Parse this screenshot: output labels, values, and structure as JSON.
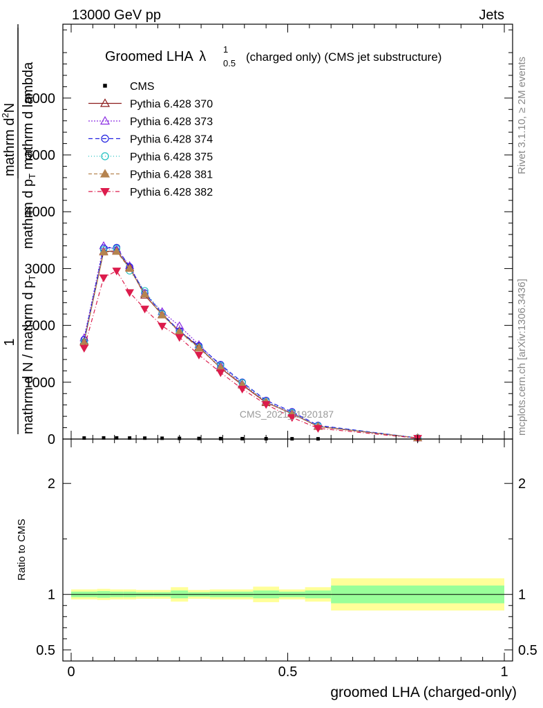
{
  "header": {
    "left": "13000 GeV pp",
    "right": "Jets"
  },
  "side_labels": {
    "rivet": "Rivet 3.1.10, ≥ 2M events",
    "mcplots": "mcplots.cern.ch [arXiv:1306.3436]"
  },
  "watermark": "CMS_2021_I1920187",
  "colors": {
    "band_outer": "#ffff99",
    "band_inner": "#99ff99",
    "cms": "#000000",
    "py370": "#8b1a1a",
    "py373": "#8a2be2",
    "py374": "#2020e0",
    "py375": "#20c0c0",
    "py381": "#b5834f",
    "py382": "#dc1c4c"
  },
  "chart_data": [
    {
      "type": "line",
      "title": "Groomed LHA λ¹₀.₅ (charged only) (CMS jet substructure)",
      "title_main": "Groomed LHA",
      "title_lambda": "λ",
      "title_sup": "1",
      "title_sub": "0.5",
      "title_rest": "(charged only) (CMS jet substructure)",
      "ylabel_numerator": "1",
      "ylabel_denominator": "mathrm d N / mathrm d p_T",
      "ylabel_overlay_1": "mathrm d^2 N",
      "ylabel_overlay_2": "mathrm d p_T mathrm d lambda",
      "ylabel_overlay_text1": "mathrm d",
      "ylabel_overlay_text1_sup": "2",
      "ylabel_overlay_text1_tail": "N",
      "ylabel_overlay_text2": "mathrm d p",
      "ylabel_overlay_text2_sub": "T",
      "ylabel_overlay_text2_tail": " mathrm d lambda",
      "ylabel_den_text": "mathrm d N / mathrm d p",
      "ylabel_den_sub": "T",
      "xlim": [
        0,
        1
      ],
      "ylim": [
        0,
        7300
      ],
      "yticks": [
        0,
        1000,
        2000,
        3000,
        4000,
        5000,
        6000
      ],
      "ytick_labels": [
        "0",
        "1000",
        "2000",
        "3000",
        "4000",
        "5000",
        "6000"
      ],
      "grid": false,
      "legend_position": "top-left",
      "series": [
        {
          "name": "CMS",
          "key": "cms",
          "marker": "square",
          "x": [
            0.03,
            0.075,
            0.105,
            0.135,
            0.17,
            0.21,
            0.25,
            0.295,
            0.345,
            0.395,
            0.45,
            0.51,
            0.57
          ],
          "y": [
            18,
            20,
            20,
            18,
            16,
            14,
            12,
            10,
            8,
            7,
            6,
            5,
            4
          ]
        },
        {
          "name": "Pythia 6.428 370",
          "key": "py370",
          "marker": "triangle-open",
          "dash": "",
          "x": [
            0.03,
            0.075,
            0.105,
            0.135,
            0.17,
            0.21,
            0.25,
            0.295,
            0.345,
            0.395,
            0.45,
            0.51,
            0.57,
            0.8
          ],
          "y": [
            1720,
            3300,
            3310,
            3020,
            2530,
            2190,
            1900,
            1620,
            1250,
            950,
            640,
            450,
            220,
            20
          ]
        },
        {
          "name": "Pythia 6.428 373",
          "key": "py373",
          "marker": "triangle-open",
          "dash": "2,2",
          "x": [
            0.03,
            0.075,
            0.105,
            0.135,
            0.17,
            0.21,
            0.25,
            0.295,
            0.345,
            0.395,
            0.45,
            0.51,
            0.57,
            0.8
          ],
          "y": [
            1780,
            3400,
            3340,
            3050,
            2560,
            2240,
            1990,
            1660,
            1290,
            970,
            660,
            460,
            230,
            20
          ]
        },
        {
          "name": "Pythia 6.428 374",
          "key": "py374",
          "marker": "circle-open",
          "dash": "6,4",
          "x": [
            0.03,
            0.075,
            0.105,
            0.135,
            0.17,
            0.21,
            0.25,
            0.295,
            0.345,
            0.395,
            0.45,
            0.51,
            0.57,
            0.8
          ],
          "y": [
            1750,
            3360,
            3370,
            3030,
            2570,
            2210,
            1900,
            1640,
            1310,
            1000,
            680,
            480,
            240,
            20
          ]
        },
        {
          "name": "Pythia 6.428 375",
          "key": "py375",
          "marker": "circle-open",
          "dash": "1,3",
          "x": [
            0.03,
            0.075,
            0.105,
            0.135,
            0.17,
            0.21,
            0.25,
            0.295,
            0.345,
            0.395,
            0.45,
            0.51,
            0.57,
            0.8
          ],
          "y": [
            1710,
            3330,
            3350,
            2960,
            2610,
            2200,
            1870,
            1610,
            1290,
            990,
            660,
            460,
            230,
            20
          ]
        },
        {
          "name": "Pythia 6.428 381",
          "key": "py381",
          "marker": "triangle-filled",
          "dash": "5,3",
          "x": [
            0.03,
            0.075,
            0.105,
            0.135,
            0.17,
            0.21,
            0.25,
            0.295,
            0.345,
            0.395,
            0.45,
            0.51,
            0.57,
            0.8
          ],
          "y": [
            1700,
            3290,
            3300,
            3000,
            2550,
            2180,
            1890,
            1600,
            1260,
            960,
            650,
            440,
            220,
            20
          ]
        },
        {
          "name": "Pythia 6.428 382",
          "key": "py382",
          "marker": "triangle-down-filled",
          "dash": "6,3,1,3",
          "x": [
            0.03,
            0.075,
            0.105,
            0.135,
            0.17,
            0.21,
            0.25,
            0.295,
            0.345,
            0.395,
            0.45,
            0.51,
            0.57,
            0.8
          ],
          "y": [
            1600,
            2840,
            2960,
            2580,
            2290,
            1990,
            1790,
            1480,
            1170,
            880,
            610,
            380,
            190,
            15
          ]
        }
      ]
    },
    {
      "type": "area",
      "ylabel": "Ratio to CMS",
      "xlabel": "groomed LHA (charged-only)",
      "xlim": [
        0,
        1
      ],
      "ylim": [
        0.4,
        2.4
      ],
      "xticks": [
        0,
        0.5,
        1
      ],
      "xtick_labels": [
        "0",
        "0.5",
        "1"
      ],
      "yticks": [
        0.5,
        1,
        2
      ],
      "ytick_labels": [
        "0.5",
        "1",
        "2"
      ],
      "reference": 1,
      "bins": [
        {
          "x0": 0.0,
          "x1": 0.06,
          "inner": [
            0.975,
            1.025
          ],
          "outer": [
            0.955,
            1.045
          ]
        },
        {
          "x0": 0.06,
          "x1": 0.09,
          "inner": [
            0.97,
            1.03
          ],
          "outer": [
            0.95,
            1.05
          ]
        },
        {
          "x0": 0.09,
          "x1": 0.12,
          "inner": [
            0.975,
            1.025
          ],
          "outer": [
            0.955,
            1.045
          ]
        },
        {
          "x0": 0.12,
          "x1": 0.15,
          "inner": [
            0.975,
            1.025
          ],
          "outer": [
            0.955,
            1.045
          ]
        },
        {
          "x0": 0.15,
          "x1": 0.19,
          "inner": [
            0.98,
            1.02
          ],
          "outer": [
            0.96,
            1.04
          ]
        },
        {
          "x0": 0.19,
          "x1": 0.23,
          "inner": [
            0.98,
            1.02
          ],
          "outer": [
            0.96,
            1.04
          ]
        },
        {
          "x0": 0.23,
          "x1": 0.27,
          "inner": [
            0.965,
            1.035
          ],
          "outer": [
            0.935,
            1.065
          ]
        },
        {
          "x0": 0.27,
          "x1": 0.32,
          "inner": [
            0.98,
            1.02
          ],
          "outer": [
            0.96,
            1.04
          ]
        },
        {
          "x0": 0.32,
          "x1": 0.37,
          "inner": [
            0.975,
            1.025
          ],
          "outer": [
            0.955,
            1.045
          ]
        },
        {
          "x0": 0.37,
          "x1": 0.42,
          "inner": [
            0.975,
            1.025
          ],
          "outer": [
            0.955,
            1.045
          ]
        },
        {
          "x0": 0.42,
          "x1": 0.48,
          "inner": [
            0.965,
            1.035
          ],
          "outer": [
            0.93,
            1.07
          ]
        },
        {
          "x0": 0.48,
          "x1": 0.54,
          "inner": [
            0.975,
            1.025
          ],
          "outer": [
            0.955,
            1.045
          ]
        },
        {
          "x0": 0.54,
          "x1": 0.6,
          "inner": [
            0.965,
            1.035
          ],
          "outer": [
            0.935,
            1.065
          ]
        },
        {
          "x0": 0.6,
          "x1": 1.0,
          "inner": [
            0.92,
            1.08
          ],
          "outer": [
            0.855,
            1.145
          ]
        }
      ]
    }
  ]
}
